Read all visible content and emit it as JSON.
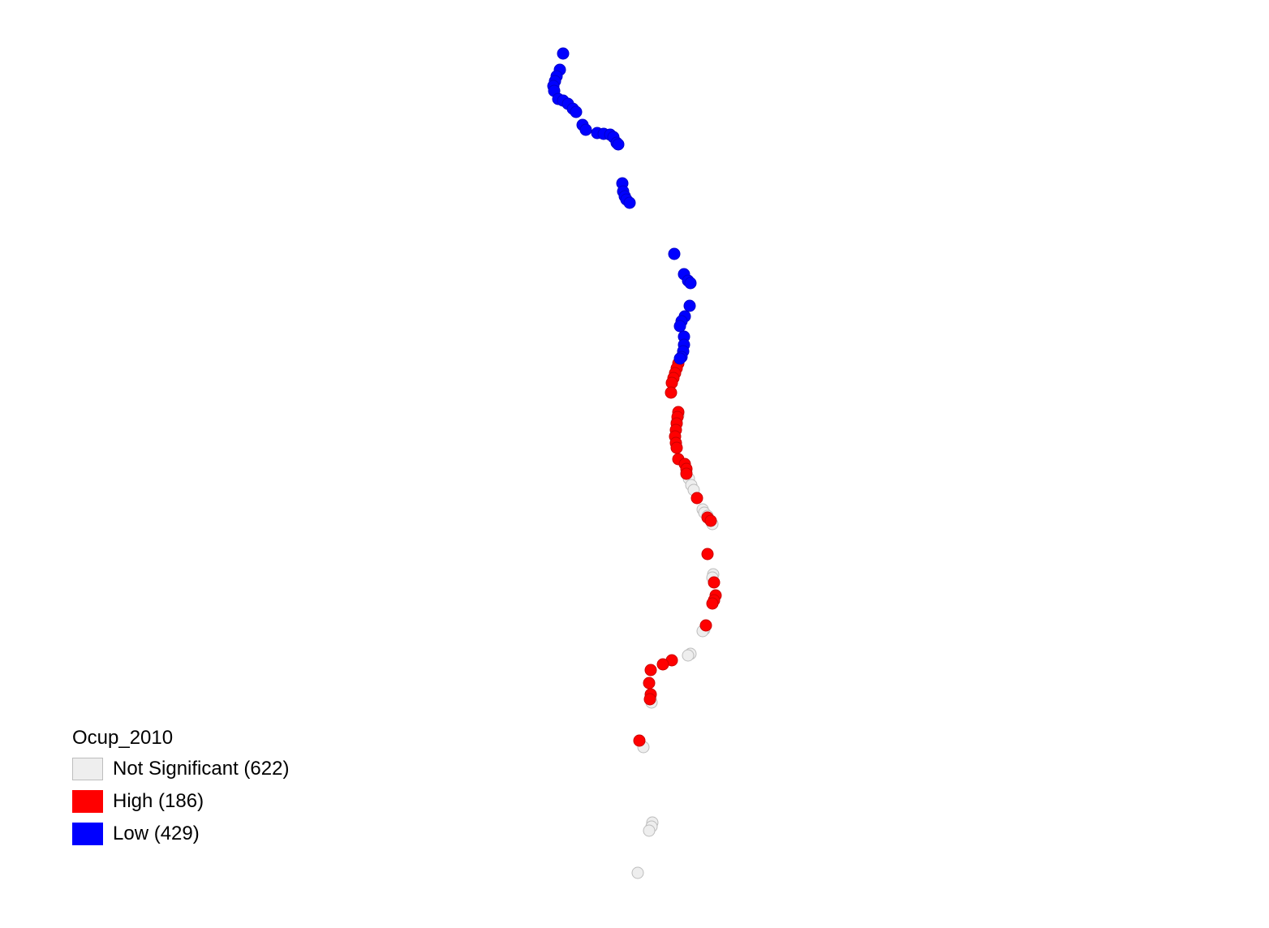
{
  "legend": {
    "title": "Ocup_2010",
    "items": [
      {
        "key": "ns",
        "label": "Not Significant (622)",
        "color": "#eeeeee",
        "border": "#bdbdbd"
      },
      {
        "key": "high",
        "label": "High (186)",
        "color": "#ff0000",
        "border": "#ff0000"
      },
      {
        "key": "low",
        "label": "Low (429)",
        "color": "#0000ff",
        "border": "#0000ff"
      }
    ]
  }
}
